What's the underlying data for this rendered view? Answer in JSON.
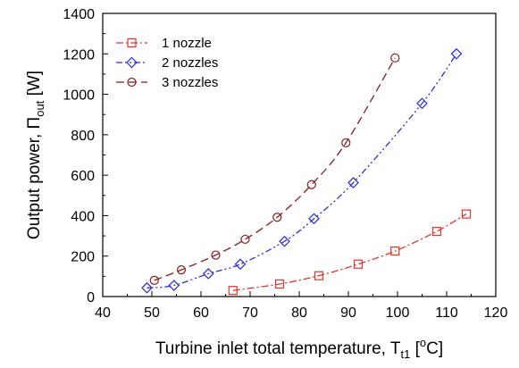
{
  "chart_data": {
    "type": "line",
    "title": "",
    "xlabel": {
      "text": "Turbine inlet total temperature, T",
      "sub": "t1",
      "after": " [",
      "sup": "o",
      "tail": "C]"
    },
    "ylabel": {
      "text": "Output power, Π",
      "sub": "out",
      "tail": " [W]"
    },
    "xlim": [
      40,
      120
    ],
    "ylim": [
      0,
      1400
    ],
    "xticks": [
      "40",
      "50",
      "60",
      "70",
      "80",
      "90",
      "100",
      "110",
      "120"
    ],
    "yticks": [
      "0",
      "200",
      "400",
      "600",
      "800",
      "1000",
      "1200",
      "1400"
    ],
    "grid": false,
    "legend_position": "top-left",
    "series": [
      {
        "name": "1 nozzle",
        "color": "#e8312a",
        "dash": "dash-dot",
        "marker": "square",
        "x": [
          66.5,
          76.0,
          84.0,
          92.0,
          99.5,
          108.0,
          114.0
        ],
        "y": [
          30,
          62,
          103,
          160,
          225,
          322,
          408
        ]
      },
      {
        "name": "2 nozzles",
        "color": "#2b2bdc",
        "dash": "dash-dot-dot",
        "marker": "diamond",
        "x": [
          49.0,
          54.5,
          61.5,
          68.0,
          77.0,
          83.0,
          91.0,
          105.0,
          112.0
        ],
        "y": [
          43,
          55,
          113,
          160,
          273,
          385,
          563,
          955,
          1200
        ]
      },
      {
        "name": "3 nozzles",
        "color": "#8b1a1a",
        "dash": "dash",
        "marker": "circle",
        "x": [
          50.5,
          56.0,
          63.0,
          69.0,
          75.5,
          82.5,
          89.5,
          99.5
        ],
        "y": [
          80,
          132,
          205,
          283,
          392,
          553,
          760,
          1180
        ]
      }
    ]
  }
}
